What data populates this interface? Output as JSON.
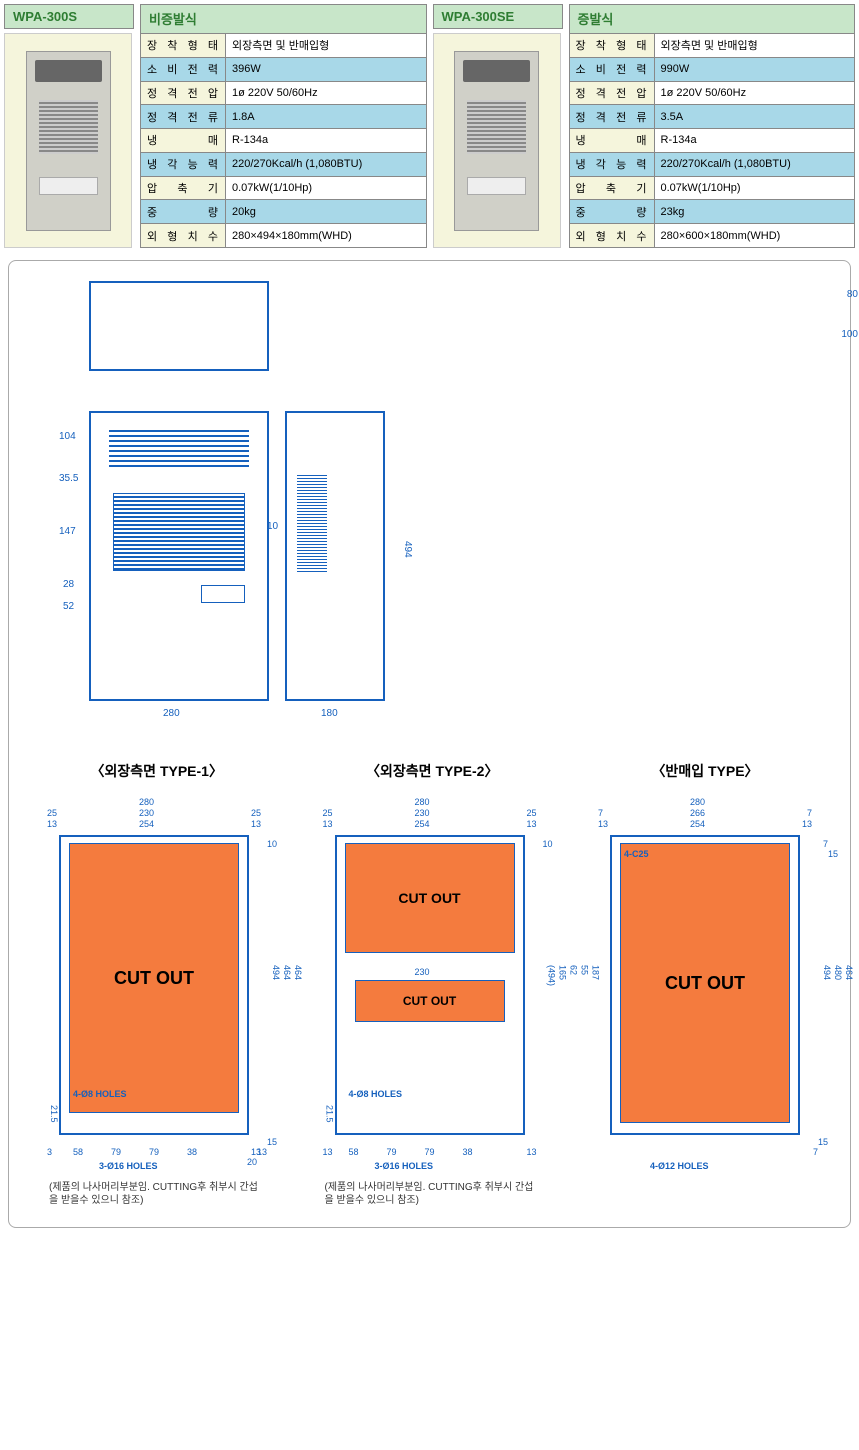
{
  "products": [
    {
      "model": "WPA-300S",
      "type": "비증발식",
      "specs": [
        {
          "label": "장 착 형 태",
          "value": "외장측면 및 반매입형",
          "alt": false
        },
        {
          "label": "소 비 전 력",
          "value": "396W",
          "alt": true
        },
        {
          "label": "정 격 전 압",
          "value": "1ø 220V 50/60Hz",
          "alt": false
        },
        {
          "label": "정 격 전 류",
          "value": "1.8A",
          "alt": true
        },
        {
          "label": "냉      매",
          "value": "R-134a",
          "alt": false
        },
        {
          "label": "냉 각 능 력",
          "value": "220/270Kcal/h (1,080BTU)",
          "alt": true
        },
        {
          "label": "압  축  기",
          "value": "0.07kW(1/10Hp)",
          "alt": false
        },
        {
          "label": "중      량",
          "value": "20kg",
          "alt": true
        },
        {
          "label": "외 형 치 수",
          "value": "280×494×180mm(WHD)",
          "alt": false
        }
      ]
    },
    {
      "model": "WPA-300SE",
      "type": "증발식",
      "specs": [
        {
          "label": "장 착 형 태",
          "value": "외장측면 및 반매입형",
          "alt": false
        },
        {
          "label": "소 비 전 력",
          "value": "990W",
          "alt": true
        },
        {
          "label": "정 격 전 압",
          "value": "1ø 220V 50/60Hz",
          "alt": false
        },
        {
          "label": "정 격 전 류",
          "value": "3.5A",
          "alt": true
        },
        {
          "label": "냉      매",
          "value": "R-134a",
          "alt": false
        },
        {
          "label": "냉 각 능 력",
          "value": "220/270Kcal/h (1,080BTU)",
          "alt": true
        },
        {
          "label": "압  축  기",
          "value": "0.07kW(1/10Hp)",
          "alt": false
        },
        {
          "label": "중      량",
          "value": "23kg",
          "alt": true
        },
        {
          "label": "외 형 치 수",
          "value": "280×600×180mm(WHD)",
          "alt": false
        }
      ]
    }
  ],
  "drawing_dims": {
    "top": {
      "w": "280",
      "d": "180",
      "h1": "80",
      "h2": "100"
    },
    "front": {
      "w": "280",
      "h": "494",
      "d104": "104",
      "d355": "35.5",
      "d147": "147",
      "d28": "28",
      "d52": "52",
      "d10": "10"
    },
    "side": {
      "w": "180"
    }
  },
  "mount_types": [
    {
      "title": "〈외장측면 TYPE-1〉",
      "cutouts": [
        {
          "cls": "cutout-full",
          "text": "CUT OUT"
        }
      ],
      "dims_top": [
        "280",
        "230",
        "254"
      ],
      "dims_top_side": [
        "25",
        "13"
      ],
      "dims_right": [
        "494",
        "464",
        "464"
      ],
      "dims_bottom": [
        "58",
        "79",
        "79",
        "38"
      ],
      "dims_bottom_side": [
        "13",
        "3"
      ],
      "dims_right_bot": [
        "15",
        "13",
        "20"
      ],
      "dims_left_bot": [
        "21.5"
      ],
      "dims_top_right": [
        "10"
      ],
      "holes": [
        "4-Ø8 HOLES",
        "3-Ø16 HOLES"
      ],
      "note": "(제품의 나사머리부분임. CUTTING후 취부시 간섭을 받을수 있으니 참조)"
    },
    {
      "title": "〈외장측면 TYPE-2〉",
      "cutouts": [
        {
          "cls": "cutout-t2a",
          "text": "CUT OUT"
        },
        {
          "cls": "cutout-t2b",
          "text": "CUT OUT"
        }
      ],
      "dims_top": [
        "280",
        "230",
        "254"
      ],
      "dims_top_side": [
        "25",
        "13"
      ],
      "dims_right": [
        "(494)",
        "165",
        "62",
        "55",
        "187"
      ],
      "dims_bottom": [
        "58",
        "79",
        "79",
        "38"
      ],
      "dims_bottom_side": [
        "13",
        "13"
      ],
      "dims_left_bot": [
        "21.5"
      ],
      "dims_top_right": [
        "10"
      ],
      "dims_mid": [
        "230"
      ],
      "holes": [
        "4-Ø8 HOLES",
        "3-Ø16 HOLES"
      ],
      "note": "(제품의 나사머리부분임. CUTTING후 취부시 간섭을 받을수 있으니 참조)"
    },
    {
      "title": "〈반매입 TYPE〉",
      "cutouts": [
        {
          "cls": "cutout-t3",
          "text": "CUT OUT"
        }
      ],
      "dims_top": [
        "280",
        "266",
        "254"
      ],
      "dims_top_side": [
        "7",
        "13"
      ],
      "dims_right": [
        "494",
        "480",
        "464"
      ],
      "dims_right_bot": [
        "15",
        "7"
      ],
      "dims_top_right": [
        "7",
        "15"
      ],
      "holes": [
        "4-C25",
        "4-Ø12 HOLES"
      ],
      "note": ""
    }
  ],
  "colors": {
    "header_bg": "#c8e6c9",
    "alt_row": "#a8d8e8",
    "cream": "#f5f5dc",
    "cutout": "#f47b3e",
    "line": "#1560bd"
  }
}
